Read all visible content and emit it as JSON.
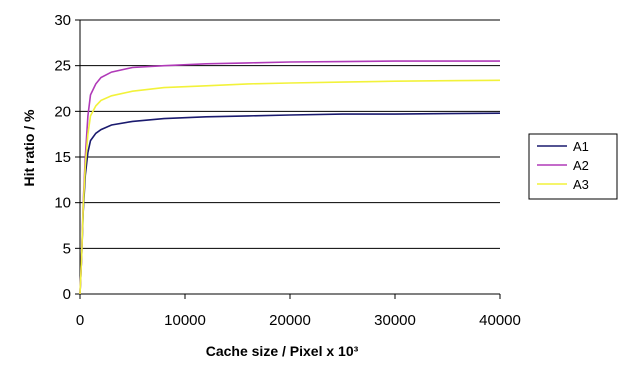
{
  "chart_data": {
    "type": "line",
    "title": "",
    "xlabel": "Cache size / Pixel x 10³",
    "ylabel": "Hit ratio / %",
    "xlim": [
      0,
      40000
    ],
    "ylim": [
      0,
      30
    ],
    "x_ticks": [
      0,
      10000,
      20000,
      30000,
      40000
    ],
    "y_ticks": [
      0,
      5,
      10,
      15,
      20,
      25,
      30
    ],
    "grid": "horizontal",
    "legend_position": "right",
    "series": [
      {
        "name": "A1",
        "color": "#1a1a6e",
        "points": [
          [
            0,
            0
          ],
          [
            150,
            4
          ],
          [
            300,
            9
          ],
          [
            500,
            13
          ],
          [
            750,
            15.5
          ],
          [
            1000,
            16.8
          ],
          [
            1500,
            17.6
          ],
          [
            2000,
            18.0
          ],
          [
            3000,
            18.5
          ],
          [
            5000,
            18.9
          ],
          [
            8000,
            19.2
          ],
          [
            12000,
            19.4
          ],
          [
            16000,
            19.5
          ],
          [
            20000,
            19.6
          ],
          [
            25000,
            19.7
          ],
          [
            30000,
            19.7
          ],
          [
            35000,
            19.75
          ],
          [
            40000,
            19.8
          ]
        ]
      },
      {
        "name": "A2",
        "color": "#b03ab8",
        "points": [
          [
            0,
            0
          ],
          [
            150,
            4
          ],
          [
            300,
            10
          ],
          [
            500,
            15
          ],
          [
            750,
            19.5
          ],
          [
            1000,
            21.8
          ],
          [
            1500,
            23.0
          ],
          [
            2000,
            23.7
          ],
          [
            3000,
            24.3
          ],
          [
            5000,
            24.8
          ],
          [
            8000,
            25.0
          ],
          [
            12000,
            25.2
          ],
          [
            16000,
            25.3
          ],
          [
            20000,
            25.4
          ],
          [
            25000,
            25.45
          ],
          [
            30000,
            25.5
          ],
          [
            35000,
            25.5
          ],
          [
            40000,
            25.5
          ]
        ]
      },
      {
        "name": "A3",
        "color": "#f2f23a",
        "points": [
          [
            0,
            0
          ],
          [
            150,
            4
          ],
          [
            300,
            9.5
          ],
          [
            500,
            14
          ],
          [
            750,
            17.5
          ],
          [
            1000,
            19.5
          ],
          [
            1500,
            20.6
          ],
          [
            2000,
            21.2
          ],
          [
            3000,
            21.7
          ],
          [
            5000,
            22.2
          ],
          [
            8000,
            22.6
          ],
          [
            12000,
            22.8
          ],
          [
            16000,
            23.0
          ],
          [
            20000,
            23.1
          ],
          [
            25000,
            23.2
          ],
          [
            30000,
            23.3
          ],
          [
            35000,
            23.35
          ],
          [
            40000,
            23.4
          ]
        ]
      }
    ]
  }
}
